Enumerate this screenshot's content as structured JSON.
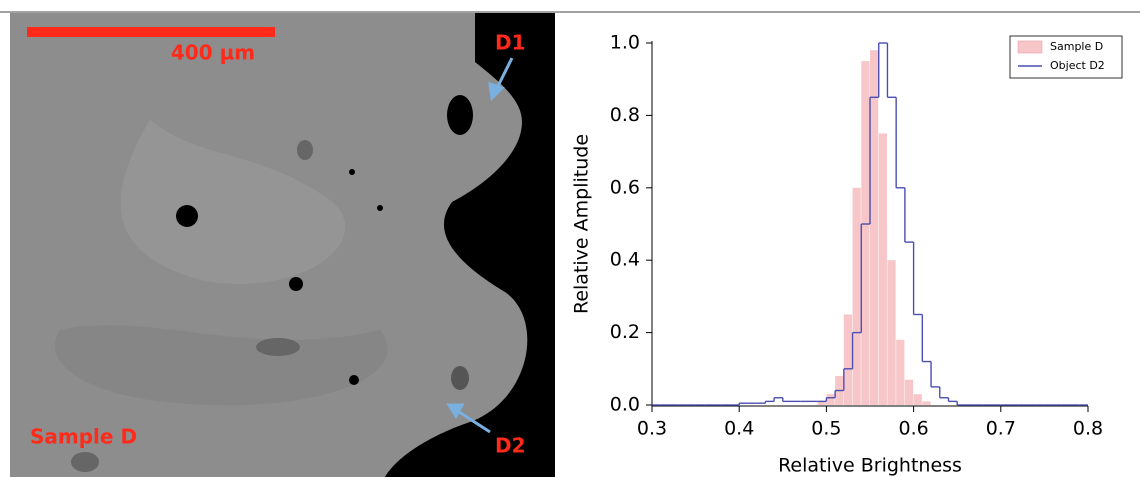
{
  "image": {
    "scale_label": "400 µm",
    "labels": [
      "D1",
      "D2",
      "Sample D"
    ]
  },
  "chart_data": {
    "type": "histogram",
    "xlabel": "Relative Brightness",
    "ylabel": "Relative Amplitude",
    "bins": [
      0.3,
      0.31,
      0.32,
      0.33,
      0.34,
      0.35,
      0.36,
      0.37,
      0.38,
      0.39,
      0.4,
      0.41,
      0.42,
      0.43,
      0.44,
      0.45,
      0.46,
      0.47,
      0.48,
      0.49,
      0.5,
      0.51,
      0.52,
      0.53,
      0.54,
      0.55,
      0.56,
      0.57,
      0.58,
      0.59,
      0.6,
      0.61,
      0.62,
      0.63,
      0.64,
      0.65,
      0.66,
      0.67,
      0.68,
      0.69,
      0.7,
      0.71,
      0.72,
      0.73,
      0.74,
      0.75,
      0.76,
      0.77,
      0.78,
      0.79,
      0.8
    ],
    "series": [
      {
        "name": "Sample D",
        "color": "#f7c6c9",
        "style": "bar",
        "values": [
          0,
          0,
          0,
          0,
          0,
          0,
          0,
          0,
          0,
          0,
          0,
          0,
          0,
          0,
          0,
          0,
          0,
          0,
          0,
          0.01,
          0.03,
          0.08,
          0.25,
          0.6,
          0.95,
          0.98,
          0.75,
          0.4,
          0.18,
          0.07,
          0.03,
          0.01,
          0,
          0,
          0,
          0,
          0,
          0,
          0,
          0,
          0,
          0,
          0,
          0,
          0,
          0,
          0,
          0,
          0,
          0
        ]
      },
      {
        "name": "Object D2",
        "color": "#4a4fb0",
        "style": "step",
        "values": [
          0,
          0,
          0,
          0,
          0,
          0,
          0,
          0,
          0,
          0,
          0.005,
          0.005,
          0.005,
          0.01,
          0.02,
          0.01,
          0.01,
          0.01,
          0.01,
          0.01,
          0.02,
          0.04,
          0.1,
          0.2,
          0.5,
          0.85,
          1.0,
          0.85,
          0.6,
          0.45,
          0.25,
          0.12,
          0.05,
          0.02,
          0.01,
          0,
          0,
          0,
          0,
          0,
          0,
          0,
          0,
          0,
          0,
          0,
          0,
          0,
          0,
          0
        ]
      }
    ],
    "xlim": [
      0.3,
      0.8
    ],
    "ylim": [
      0,
      1
    ],
    "xticks": [
      0.3,
      0.4,
      0.5,
      0.6,
      0.7,
      0.8
    ],
    "yticks": [
      {
        "value": 0,
        "label": "0.0"
      },
      0.2,
      0.4,
      0.6,
      0.8,
      {
        "value": 1,
        "label": "1.0"
      }
    ],
    "legend": "upper right"
  }
}
